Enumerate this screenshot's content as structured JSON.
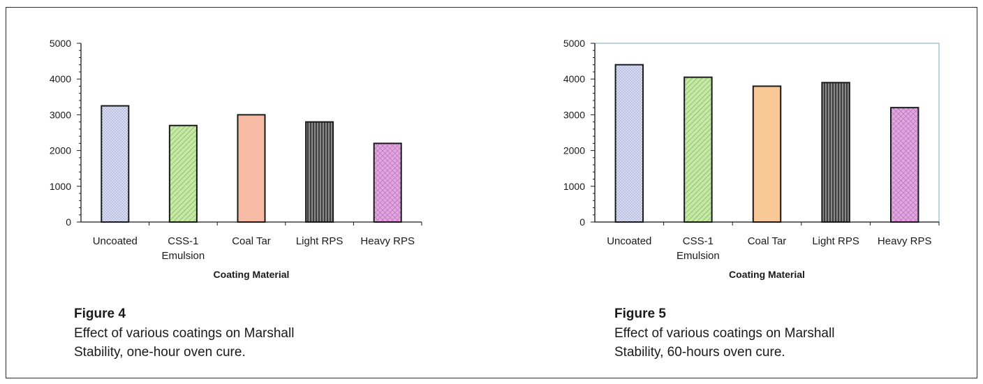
{
  "chart_data": [
    {
      "type": "bar",
      "categories": [
        [
          "Uncoated"
        ],
        [
          "CSS-1",
          "Emulsion"
        ],
        [
          "Coal Tar"
        ],
        [
          "Light RPS"
        ],
        [
          "Heavy RPS"
        ]
      ],
      "values": [
        3250,
        2700,
        3000,
        2800,
        2200
      ],
      "xlabel": "Coating Material",
      "ylabel": "",
      "ylim": [
        0,
        5000
      ],
      "yticks": [
        0,
        1000,
        2000,
        3000,
        4000,
        5000
      ],
      "bar_colors": [
        "#dadcf2",
        "#c6e8a6",
        "#f8bba6",
        "#8a8a8a",
        "#e0a6de"
      ],
      "bar_patterns": [
        "dots",
        "diagonal",
        "none",
        "vertical",
        "crosshatch"
      ],
      "grid": false,
      "legend": "none"
    },
    {
      "type": "bar",
      "categories": [
        [
          "Uncoated"
        ],
        [
          "CSS-1",
          "Emulsion"
        ],
        [
          "Coal Tar"
        ],
        [
          "Light RPS"
        ],
        [
          "Heavy RPS"
        ]
      ],
      "values": [
        4400,
        4050,
        3800,
        3900,
        3200
      ],
      "xlabel": "Coating Material",
      "ylabel": "",
      "ylim": [
        0,
        5000
      ],
      "yticks": [
        0,
        1000,
        2000,
        3000,
        4000,
        5000
      ],
      "bar_colors": [
        "#dadcf2",
        "#c6e8a6",
        "#f8c896",
        "#8a8a8a",
        "#e0a6de"
      ],
      "bar_patterns": [
        "dots",
        "diagonal",
        "none",
        "vertical",
        "crosshatch"
      ],
      "grid": false,
      "legend": "none"
    }
  ],
  "captions": [
    {
      "number": "Figure 4",
      "text_line1": "Effect of various coatings on Marshall",
      "text_line2": "Stability, one-hour oven cure."
    },
    {
      "number": "Figure 5",
      "text_line1": "Effect of various coatings on Marshall",
      "text_line2": "Stability, 60-hours oven cure."
    }
  ]
}
